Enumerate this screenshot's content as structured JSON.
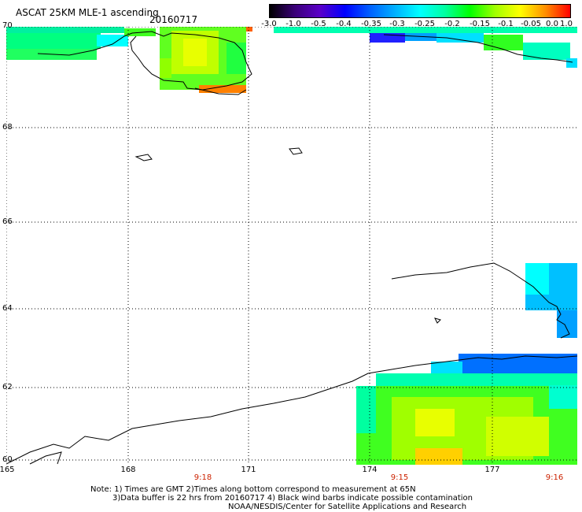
{
  "header": {
    "title": "ASCAT 25KM MLE-1 ascending",
    "date": "20160717"
  },
  "colorbar": {
    "labels": [
      "-3.0",
      "-1.0",
      "-0.5",
      "-0.4",
      "-0.35",
      "-0.3",
      "-0.25",
      "-0.2",
      "-0.15",
      "-0.1",
      "-0.05",
      "0.0",
      "1.0"
    ],
    "colors": [
      "#000000",
      "#3a0078",
      "#5a00c8",
      "#0000ff",
      "#0060ff",
      "#00b0ff",
      "#00ffff",
      "#00ffa0",
      "#00ff00",
      "#a0ff00",
      "#ffff00",
      "#ff9000",
      "#ff0000"
    ]
  },
  "axes": {
    "lat_labels": [
      "70",
      "68",
      "66",
      "64",
      "62",
      "60"
    ],
    "lon_labels": [
      "165",
      "168",
      "171",
      "174",
      "177"
    ],
    "time_labels": [
      "9:18",
      "9:15",
      "9:16"
    ]
  },
  "notes": {
    "line1": "Note: 1) Times are GMT 2)Times along bottom correspond to measurement at 65N",
    "line2": "3)Data buffer is 22 hrs from 20160717 4) Black wind barbs indicate possible contamination",
    "line3": "NOAA/NESDIS/Center for Satellite Applications and Research"
  }
}
